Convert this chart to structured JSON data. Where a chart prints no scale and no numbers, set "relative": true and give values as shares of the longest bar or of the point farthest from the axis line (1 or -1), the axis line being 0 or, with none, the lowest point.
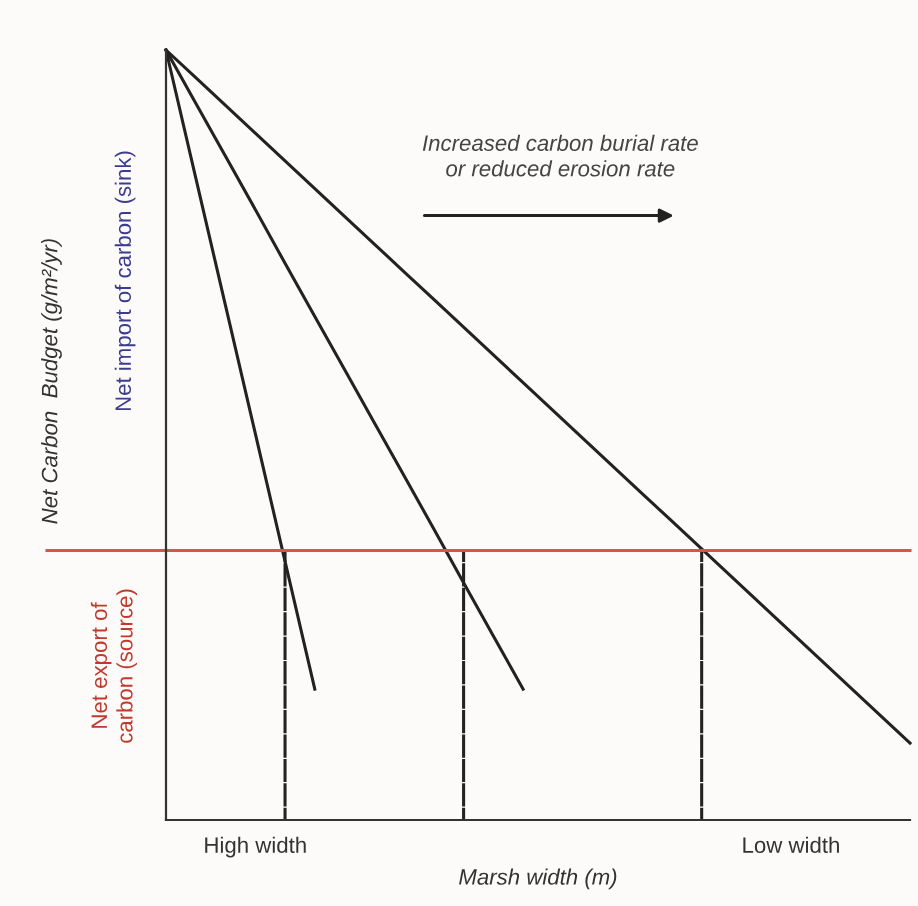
{
  "chart_data": {
    "type": "line",
    "relative": true,
    "xlabel": "Marsh width (m)",
    "ylabel": "Net Carbon  Budget (g/m²/yr)",
    "categories": [
      null,
      null,
      null,
      "High width",
      null,
      null,
      null,
      null,
      null,
      null,
      null,
      null,
      null,
      null,
      null,
      null,
      null,
      null,
      null,
      null,
      null,
      "Low width",
      null,
      null,
      null,
      null
    ],
    "annotations": [
      "Increased carbon burial rate\nor reduced erosion rate",
      "Net import of carbon (sink)",
      "Net export of\ncarbon (source)"
    ],
    "ref_lines": [
      {
        "axis": "y",
        "value": 0.35,
        "color": "#d9534f"
      }
    ],
    "series": [
      {
        "color": "#222222",
        "values": [
          1,
          0.834,
          0.668,
          0.502,
          0.336,
          0.17,
          null,
          null,
          null,
          null,
          null,
          null,
          null,
          null,
          null,
          null,
          null,
          null,
          null,
          null,
          null,
          null,
          null,
          null,
          null,
          null
        ]
      },
      {
        "color": "#222222",
        "values": [
          1,
          0.931,
          0.862,
          0.793,
          0.723,
          0.654,
          0.585,
          0.516,
          0.447,
          0.378,
          0.308,
          0.239,
          0.17,
          null,
          null,
          null,
          null,
          null,
          null,
          null,
          null,
          null,
          null,
          null,
          null,
          null
        ]
      },
      {
        "color": "#222222",
        "values": [
          1,
          0.964,
          0.928,
          0.892,
          0.856,
          0.82,
          0.784,
          0.748,
          0.712,
          0.676,
          0.64,
          0.604,
          0.568,
          0.532,
          0.496,
          0.46,
          0.424,
          0.388,
          0.352,
          0.316,
          0.28,
          0.244,
          0.208,
          0.172,
          0.136,
          0.1
        ]
      },
      {
        "type": "bar",
        "color": "#222222",
        "line_style": "dashed",
        "values": [
          null,
          null,
          null,
          null,
          0.35,
          null,
          null,
          null,
          null,
          null,
          0.35,
          null,
          null,
          null,
          null,
          null,
          null,
          null,
          0.35,
          null,
          null,
          null,
          null,
          null,
          null,
          null
        ]
      }
    ]
  }
}
